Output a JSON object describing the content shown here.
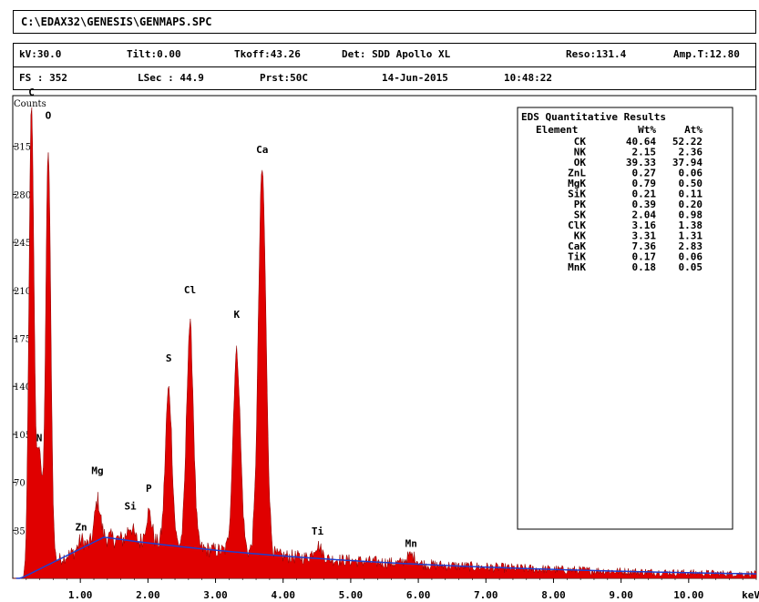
{
  "header": {
    "path": "C:\\EDAX32\\GENESIS\\GENMAPS.SPC",
    "kv": "kV:30.0",
    "tilt": "Tilt:0.00",
    "takeoff": "Tkoff:43.26",
    "detector": "Det: SDD Apollo XL",
    "reso": "Reso:131.4",
    "amp": "Amp.T:12.80",
    "fs": "FS : 352",
    "lsec": "LSec : 44.9",
    "prst": "Prst:50C",
    "date": "14-Jun-2015",
    "time": "10:48:22"
  },
  "chart_data": {
    "type": "area",
    "ylabel": "Counts",
    "xunit": "keV",
    "xlim": [
      0,
      11
    ],
    "ylim": [
      0,
      352
    ],
    "x_ticks": [
      "1.00",
      "2.00",
      "3.00",
      "4.00",
      "5.00",
      "6.00",
      "7.00",
      "8.00",
      "9.00",
      "10.00"
    ],
    "y_ticks": [
      "35",
      "70",
      "105",
      "140",
      "175",
      "210",
      "245",
      "280",
      "315"
    ],
    "fill_color": "#e00000",
    "background_color": "#1f3fd0",
    "peaks": [
      {
        "label": "C",
        "energy": 0.277,
        "counts": 345
      },
      {
        "label": "N",
        "energy": 0.392,
        "counts": 95
      },
      {
        "label": "O",
        "energy": 0.525,
        "counts": 312
      },
      {
        "label": "Zn",
        "energy": 1.012,
        "counts": 28
      },
      {
        "label": "Mg",
        "energy": 1.254,
        "counts": 57
      },
      {
        "label": "Si",
        "energy": 1.74,
        "counts": 38
      },
      {
        "label": "P",
        "energy": 2.013,
        "counts": 48
      },
      {
        "label": "S",
        "energy": 2.307,
        "counts": 138
      },
      {
        "label": "Cl",
        "energy": 2.622,
        "counts": 185
      },
      {
        "label": "K",
        "energy": 3.313,
        "counts": 165
      },
      {
        "label": "Ca",
        "energy": 3.69,
        "counts": 298
      },
      {
        "label": "Ti",
        "energy": 4.51,
        "counts": 24
      },
      {
        "label": "Mn",
        "energy": 5.895,
        "counts": 17
      }
    ],
    "peak_labels": [
      {
        "text": "C",
        "energy": 0.277,
        "counts": 352
      },
      {
        "text": "O",
        "energy": 0.525,
        "counts": 335
      },
      {
        "text": "N",
        "energy": 0.392,
        "counts": 100
      },
      {
        "text": "Zn",
        "energy": 1.012,
        "counts": 35
      },
      {
        "text": "Mg",
        "energy": 1.254,
        "counts": 76
      },
      {
        "text": "Si",
        "energy": 1.74,
        "counts": 50
      },
      {
        "text": "P",
        "energy": 2.013,
        "counts": 63
      },
      {
        "text": "S",
        "energy": 2.307,
        "counts": 158
      },
      {
        "text": "Cl",
        "energy": 2.622,
        "counts": 208
      },
      {
        "text": "K",
        "energy": 3.313,
        "counts": 190
      },
      {
        "text": "Ca",
        "energy": 3.69,
        "counts": 310
      },
      {
        "text": "Ti",
        "energy": 4.51,
        "counts": 32
      },
      {
        "text": "Mn",
        "energy": 5.895,
        "counts": 23
      }
    ],
    "results": {
      "title": "EDS Quantitative Results",
      "columns": [
        "Element",
        "Wt%",
        "At%"
      ],
      "rows": [
        [
          "CK",
          "40.64",
          "52.22"
        ],
        [
          "NK",
          "2.15",
          "2.36"
        ],
        [
          "OK",
          "39.33",
          "37.94"
        ],
        [
          "ZnL",
          "0.27",
          "0.06"
        ],
        [
          "MgK",
          "0.79",
          "0.50"
        ],
        [
          "SiK",
          "0.21",
          "0.11"
        ],
        [
          "PK",
          "0.39",
          "0.20"
        ],
        [
          "SK",
          "2.04",
          "0.98"
        ],
        [
          "ClK",
          "3.16",
          "1.38"
        ],
        [
          "KK",
          "3.31",
          "1.31"
        ],
        [
          "CaK",
          "7.36",
          "2.83"
        ],
        [
          "TiK",
          "0.17",
          "0.06"
        ],
        [
          "MnK",
          "0.18",
          "0.05"
        ]
      ]
    }
  }
}
